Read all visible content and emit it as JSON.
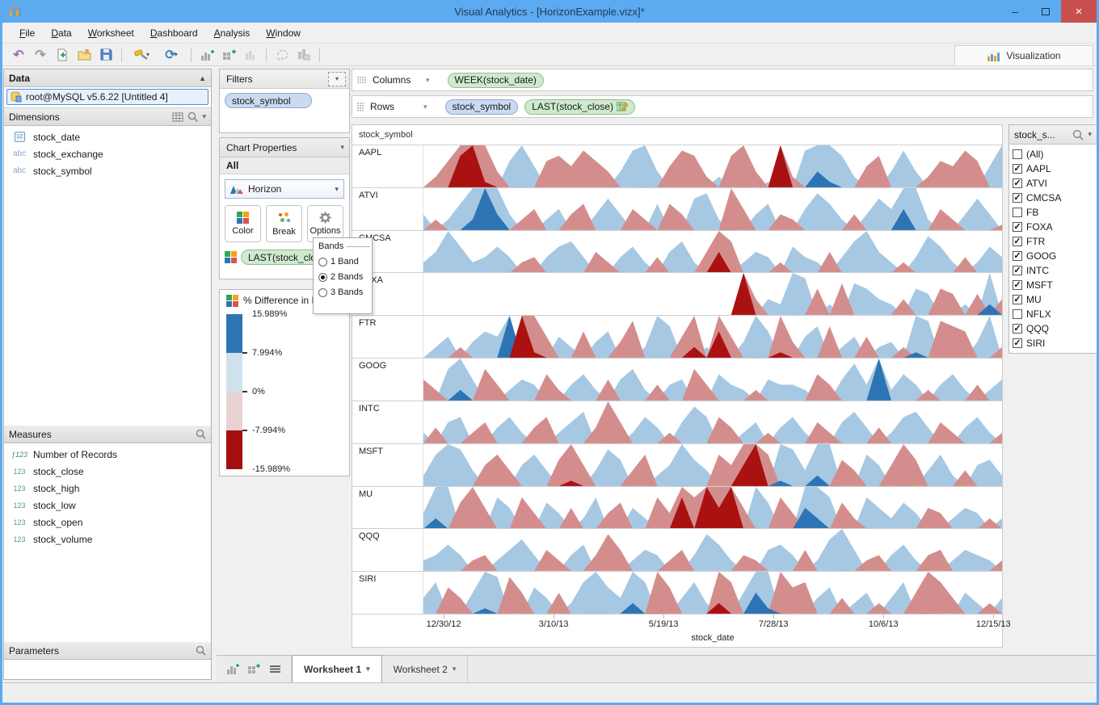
{
  "window": {
    "title": "Visual Analytics - [HorizonExample.vizx]*",
    "minimize": "–",
    "maximize": "",
    "close": "×"
  },
  "menu": {
    "items": [
      "File",
      "Data",
      "Worksheet",
      "Dashboard",
      "Analysis",
      "Window"
    ]
  },
  "toolbar": {
    "icons": [
      "undo",
      "redo",
      "new-file",
      "open-folder",
      "save",
      "magic-wand",
      "refresh",
      "add-chart",
      "add-crosstab",
      "bar-chart",
      "lasso",
      "chart-board"
    ],
    "visualization_label": "Visualization"
  },
  "data_panel": {
    "title": "Data",
    "connection": "root@MySQL v5.6.22 [Untitled 4]",
    "dimensions": {
      "title": "Dimensions",
      "items": [
        {
          "icon": "date",
          "label": "stock_date"
        },
        {
          "icon": "abc",
          "label": "stock_exchange"
        },
        {
          "icon": "abc",
          "label": "stock_symbol"
        }
      ]
    },
    "measures": {
      "title": "Measures",
      "items": [
        {
          "icon": "f123",
          "label": "Number of Records"
        },
        {
          "icon": "123",
          "label": "stock_close"
        },
        {
          "icon": "123",
          "label": "stock_high"
        },
        {
          "icon": "123",
          "label": "stock_low"
        },
        {
          "icon": "123",
          "label": "stock_open"
        },
        {
          "icon": "123",
          "label": "stock_volume"
        }
      ]
    },
    "parameters": {
      "title": "Parameters"
    }
  },
  "filters_panel": {
    "title": "Filters",
    "pill": "stock_symbol"
  },
  "chart_properties": {
    "title": "Chart Properties",
    "scope": "All",
    "chart_type": "Horizon",
    "buttons": [
      "Color",
      "Break",
      "Options"
    ],
    "field_pill": "LAST(stock_close)"
  },
  "bands_popup": {
    "title": "Bands",
    "options": [
      {
        "label": "1 Band",
        "selected": false
      },
      {
        "label": "2 Bands",
        "selected": true
      },
      {
        "label": "3 Bands",
        "selected": false
      }
    ]
  },
  "legend": {
    "title": "% Difference in L",
    "labels": [
      "15.989%",
      "7.994%",
      "0%",
      "-7.994%",
      "-15.989%"
    ],
    "band_colors": [
      "#2e75b4",
      "#cfe1ed",
      "#e9d2d2",
      "#a50e0e"
    ]
  },
  "shelves": {
    "columns": {
      "label": "Columns",
      "pills": [
        {
          "text": "WEEK(stock_date)",
          "type": "green"
        }
      ]
    },
    "rows": {
      "label": "Rows",
      "pills": [
        {
          "text": "stock_symbol",
          "type": "blue"
        },
        {
          "text": "LAST(stock_close)",
          "type": "green",
          "icon": "calc"
        }
      ]
    }
  },
  "symbol_filter": {
    "title": "stock_s...",
    "items": [
      {
        "label": "(All)",
        "checked": false
      },
      {
        "label": "AAPL",
        "checked": true
      },
      {
        "label": "ATVI",
        "checked": true
      },
      {
        "label": "CMCSA",
        "checked": true
      },
      {
        "label": "FB",
        "checked": false
      },
      {
        "label": "FOXA",
        "checked": true
      },
      {
        "label": "FTR",
        "checked": true
      },
      {
        "label": "GOOG",
        "checked": true
      },
      {
        "label": "INTC",
        "checked": true
      },
      {
        "label": "MSFT",
        "checked": true
      },
      {
        "label": "MU",
        "checked": true
      },
      {
        "label": "NFLX",
        "checked": false
      },
      {
        "label": "QQQ",
        "checked": true
      },
      {
        "label": "SIRI",
        "checked": true
      }
    ]
  },
  "tabs": {
    "items": [
      {
        "label": "Worksheet 1",
        "active": true
      },
      {
        "label": "Worksheet 2",
        "active": false
      }
    ]
  },
  "chart_data": {
    "type": "area",
    "subtype": "horizon",
    "row_header": "stock_symbol",
    "xlabel": "stock_date",
    "x_ticks": [
      "12/30/12",
      "3/10/13",
      "5/19/13",
      "7/28/13",
      "10/6/13",
      "12/15/13"
    ],
    "x_tick_pos": [
      0.035,
      0.225,
      0.415,
      0.605,
      0.795,
      0.985
    ],
    "bands": 2,
    "band_size_pct": 7.994,
    "ylim": [
      -15.989,
      15.989
    ],
    "colors": {
      "pos_light": "#a6c8e3",
      "pos_dark": "#2c74b4",
      "neg_light": "#d48d8d",
      "neg_dark": "#aa1111"
    },
    "series": [
      {
        "name": "AAPL",
        "values": [
          0,
          -2,
          -5,
          -14,
          -16,
          -9,
          -3,
          5,
          8,
          4,
          -5,
          -6,
          -4,
          -7,
          -5,
          -3,
          3,
          7,
          8,
          3,
          -4,
          -7,
          -6,
          -2,
          2,
          -6,
          -8,
          -3,
          1,
          -16,
          -2,
          7,
          11,
          9,
          6,
          2,
          -4,
          -6,
          3,
          7,
          3,
          -2,
          -5,
          -4,
          -7,
          -5,
          4,
          8
        ]
      },
      {
        "name": "ATVI",
        "values": [
          3,
          -2,
          2,
          5,
          10,
          16,
          11,
          3,
          -2,
          -4,
          2,
          4,
          -3,
          -5,
          3,
          6,
          3,
          -4,
          -2,
          5,
          -5,
          -3,
          6,
          7,
          2,
          -8,
          -4,
          3,
          5,
          -3,
          -2,
          4,
          7,
          5,
          2,
          -3,
          3,
          6,
          4,
          12,
          8,
          2,
          -4,
          -2,
          3,
          6,
          3,
          -1
        ]
      },
      {
        "name": "CMCSA",
        "values": [
          2,
          4,
          8,
          5,
          2,
          3,
          5,
          3,
          -2,
          -3,
          3,
          5,
          6,
          3,
          -4,
          -2,
          3,
          5,
          2,
          -3,
          4,
          6,
          2,
          -4,
          -12,
          -6,
          2,
          4,
          3,
          -2,
          5,
          3,
          2,
          -4,
          3,
          6,
          8,
          4,
          2,
          -2,
          3,
          7,
          5,
          2,
          -3,
          2,
          5,
          3
        ]
      },
      {
        "name": "FOXA",
        "values": [
          0,
          0,
          0,
          0,
          0,
          0,
          0,
          0,
          0,
          0,
          0,
          0,
          0,
          0,
          0,
          0,
          0,
          0,
          0,
          0,
          0,
          0,
          0,
          0,
          0,
          0,
          -16,
          -3,
          3,
          2,
          8,
          7,
          -5,
          2,
          -6,
          6,
          5,
          3,
          2,
          -3,
          5,
          4,
          -5,
          -4,
          2,
          -4,
          10,
          -3
        ]
      },
      {
        "name": "FTR",
        "values": [
          0,
          2,
          4,
          -2,
          3,
          5,
          4,
          16,
          -16,
          -9,
          -4,
          4,
          2,
          -5,
          3,
          5,
          -3,
          -7,
          2,
          8,
          6,
          -4,
          -10,
          2,
          -13,
          -4,
          3,
          8,
          5,
          -9,
          -3,
          4,
          6,
          -6,
          2,
          4,
          -4,
          2,
          3,
          -2,
          9,
          7,
          -7,
          -6,
          -5,
          3,
          8,
          -2
        ]
      },
      {
        "name": "GOOG",
        "values": [
          -4,
          -2,
          6,
          10,
          4,
          -6,
          -3,
          2,
          4,
          3,
          -5,
          -2,
          3,
          5,
          2,
          -4,
          4,
          6,
          2,
          -3,
          3,
          4,
          -6,
          -3,
          5,
          3,
          2,
          -2,
          4,
          3,
          3,
          2,
          -5,
          -3,
          4,
          7,
          3,
          16,
          2,
          5,
          3,
          -2,
          3,
          5,
          2,
          -3,
          2,
          4
        ]
      },
      {
        "name": "INTC",
        "values": [
          2,
          -3,
          4,
          5,
          -2,
          -4,
          3,
          5,
          2,
          -3,
          -5,
          2,
          4,
          6,
          -3,
          -8,
          -4,
          2,
          5,
          3,
          -2,
          4,
          7,
          5,
          -5,
          -3,
          2,
          4,
          -2,
          3,
          5,
          2,
          -4,
          -2,
          4,
          6,
          3,
          -3,
          2,
          5,
          6,
          3,
          -4,
          -2,
          3,
          5,
          2,
          -2
        ]
      },
      {
        "name": "MSFT",
        "values": [
          2,
          6,
          8,
          7,
          3,
          -4,
          -6,
          -3,
          4,
          6,
          3,
          -5,
          -9,
          -4,
          3,
          7,
          5,
          -3,
          -6,
          2,
          4,
          8,
          5,
          3,
          -6,
          -4,
          -12,
          -16,
          -6,
          9,
          7,
          3,
          10,
          8,
          -5,
          -3,
          6,
          4,
          -4,
          -8,
          -5,
          3,
          6,
          2,
          -3,
          4,
          5,
          2
        ]
      },
      {
        "name": "MU",
        "values": [
          3,
          10,
          8,
          -5,
          -8,
          -4,
          6,
          4,
          -6,
          -3,
          5,
          3,
          -4,
          2,
          6,
          -3,
          -5,
          4,
          2,
          -6,
          -3,
          -14,
          -6,
          -16,
          -12,
          -16,
          -4,
          8,
          5,
          -6,
          -3,
          12,
          10,
          6,
          -5,
          -2,
          6,
          4,
          2,
          5,
          3,
          -4,
          -3,
          2,
          4,
          3,
          -2,
          2
        ]
      },
      {
        "name": "QQQ",
        "values": [
          2,
          3,
          5,
          3,
          -2,
          -3,
          2,
          4,
          6,
          3,
          -4,
          -2,
          3,
          5,
          -3,
          -7,
          -4,
          2,
          4,
          3,
          -2,
          -4,
          3,
          7,
          5,
          2,
          -3,
          -2,
          4,
          5,
          3,
          -4,
          2,
          6,
          8,
          4,
          -2,
          -3,
          3,
          5,
          2,
          -3,
          -4,
          2,
          4,
          3,
          2,
          -2
        ]
      },
      {
        "name": "SIRI",
        "values": [
          3,
          6,
          -5,
          -3,
          4,
          9,
          7,
          -7,
          -4,
          5,
          3,
          -4,
          2,
          6,
          8,
          5,
          3,
          10,
          6,
          -8,
          -5,
          3,
          6,
          2,
          -10,
          -6,
          4,
          12,
          9,
          -8,
          -5,
          -6,
          3,
          5,
          -3,
          2,
          4,
          -2,
          3,
          6,
          -4,
          -8,
          -6,
          -3,
          4,
          2,
          -2,
          3
        ]
      }
    ]
  }
}
